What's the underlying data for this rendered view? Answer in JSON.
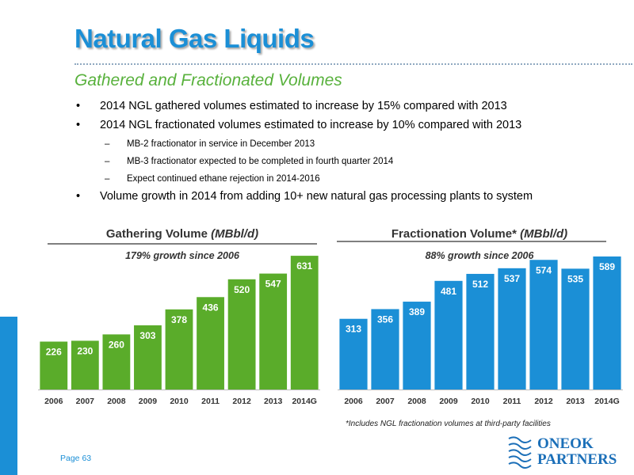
{
  "page": {
    "title": "Natural Gas Liquids",
    "subtitle": "Gathered and Fractionated Volumes",
    "page_number": "Page 63"
  },
  "bullets": [
    {
      "text": "2014 NGL gathered volumes estimated to increase by 15% compared with 2013",
      "level": 1
    },
    {
      "text": "2014 NGL fractionated volumes estimated to increase by 10% compared with 2013",
      "level": 1
    },
    {
      "text": "MB-2 fractionator in service in December 2013",
      "level": 2
    },
    {
      "text": "MB-3 fractionator expected to be completed in fourth quarter 2014",
      "level": 2
    },
    {
      "text": "Expect continued ethane rejection in 2014-2016",
      "level": 2
    },
    {
      "text": "Volume growth in 2014 from adding 10+ new natural gas processing plants to system",
      "level": 1
    }
  ],
  "chart_data": [
    {
      "type": "bar",
      "title": "Gathering Volume",
      "unit": "(MBbl/d)",
      "annotation": "179% growth since 2006",
      "categories": [
        "2006",
        "2007",
        "2008",
        "2009",
        "2010",
        "2011",
        "2012",
        "2013",
        "2014G"
      ],
      "values": [
        226,
        230,
        260,
        303,
        378,
        436,
        520,
        547,
        631
      ],
      "color": "#5aac2a",
      "ylim": [
        0,
        650
      ],
      "grid": false
    },
    {
      "type": "bar",
      "title": "Fractionation Volume*",
      "unit": "(MBbl/d)",
      "annotation": "88% growth since 2006",
      "categories": [
        "2006",
        "2007",
        "2008",
        "2009",
        "2010",
        "2011",
        "2012",
        "2013",
        "2014G"
      ],
      "values": [
        313,
        356,
        389,
        481,
        512,
        537,
        574,
        535,
        589
      ],
      "color": "#1b8fd6",
      "ylim": [
        0,
        610
      ],
      "grid": false
    }
  ],
  "footnote": "*Includes NGL fractionation volumes at third-party facilities",
  "logo": {
    "line1": "ONEOK",
    "line2": "PARTNERS",
    "icon": "oneok-wave-logo"
  },
  "bullet_glyphs": {
    "level1": "•",
    "level2": "–"
  }
}
